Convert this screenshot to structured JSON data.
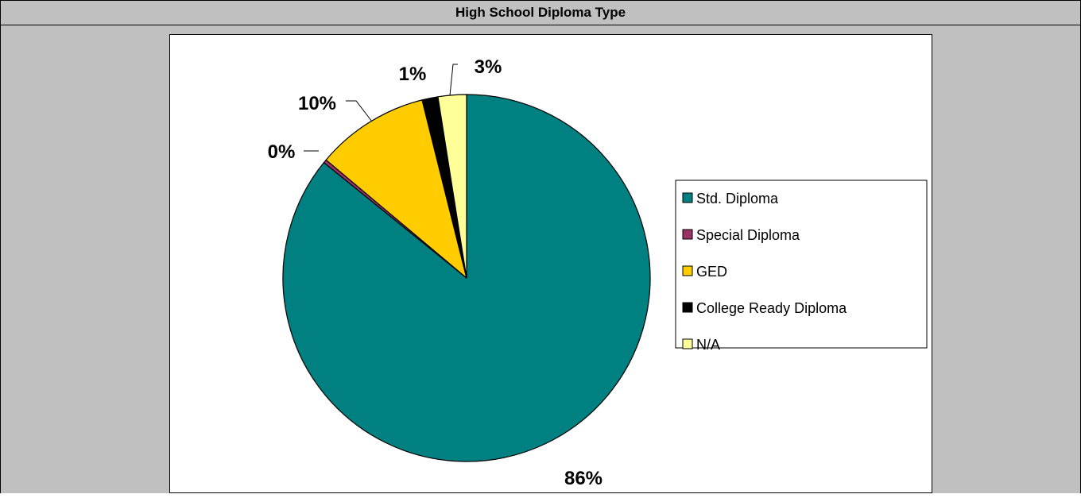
{
  "header": {
    "title": "High School Diploma Type"
  },
  "chart_data": {
    "type": "pie",
    "title": "High School Diploma Type",
    "categories": [
      "Std. Diploma",
      "Special Diploma",
      "GED",
      "College Ready Diploma",
      "N/A"
    ],
    "values": [
      86,
      0.3,
      10,
      1.4,
      2.5
    ],
    "data_labels": [
      "86%",
      "0%",
      "10%",
      "1%",
      "3%"
    ],
    "colors": [
      "#008080",
      "#993366",
      "#FFCC00",
      "#000000",
      "#FFFF99"
    ],
    "start_angle_deg": 0,
    "direction": "clockwise",
    "legend": {
      "placement": "right",
      "entries": [
        "Std. Diploma",
        "Special Diploma",
        "GED",
        "College Ready Diploma",
        "N/A"
      ]
    }
  }
}
